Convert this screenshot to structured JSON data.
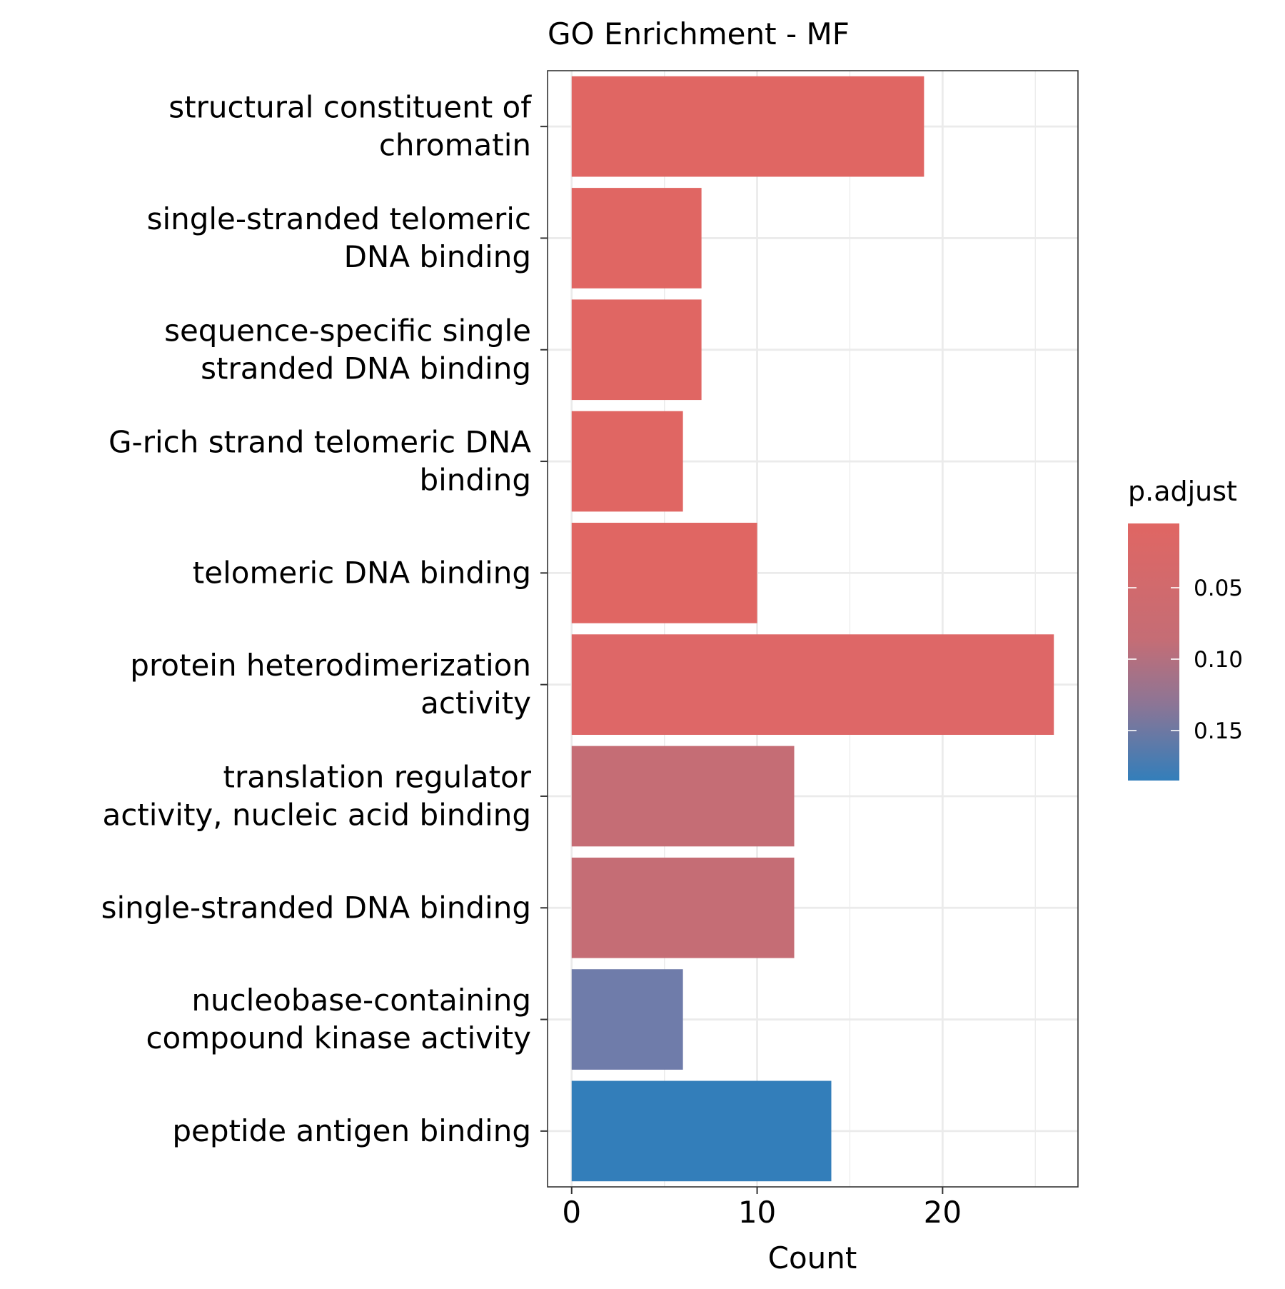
{
  "chart_data": {
    "type": "bar",
    "orientation": "horizontal",
    "title": "GO Enrichment - MF",
    "xlabel": "Count",
    "ylabel": "",
    "xlim": [
      -1.3,
      27.3
    ],
    "x_ticks": [
      0,
      10,
      20
    ],
    "x_tick_labels": [
      "0",
      "10",
      "20"
    ],
    "grid": true,
    "categories": [
      {
        "lines": [
          "structural constituent of",
          "chromatin"
        ],
        "count": 19,
        "p_adjust": 0.005,
        "color": "#E06663"
      },
      {
        "lines": [
          "single-stranded telomeric",
          "DNA binding"
        ],
        "count": 7,
        "p_adjust": 0.005,
        "color": "#E06663"
      },
      {
        "lines": [
          "sequence-specific single",
          "stranded DNA binding"
        ],
        "count": 7,
        "p_adjust": 0.005,
        "color": "#E06663"
      },
      {
        "lines": [
          "G-rich strand telomeric DNA",
          "binding"
        ],
        "count": 6,
        "p_adjust": 0.005,
        "color": "#E06663"
      },
      {
        "lines": [
          "telomeric DNA binding"
        ],
        "count": 10,
        "p_adjust": 0.006,
        "color": "#E06663"
      },
      {
        "lines": [
          "protein heterodimerization",
          "activity"
        ],
        "count": 26,
        "p_adjust": 0.008,
        "color": "#DE6767"
      },
      {
        "lines": [
          "translation regulator",
          "activity, nucleic acid binding"
        ],
        "count": 12,
        "p_adjust": 0.045,
        "color": "#C56D75"
      },
      {
        "lines": [
          "single-stranded DNA binding"
        ],
        "count": 12,
        "p_adjust": 0.045,
        "color": "#C56D75"
      },
      {
        "lines": [
          "nucleobase-containing",
          "compound kinase activity"
        ],
        "count": 6,
        "p_adjust": 0.13,
        "color": "#6F7CAA"
      },
      {
        "lines": [
          "peptide antigen binding"
        ],
        "count": 14,
        "p_adjust": 0.18,
        "color": "#337EBA"
      }
    ],
    "legend": {
      "title": "p.adjust",
      "position": "right",
      "range": [
        0.005,
        0.185
      ],
      "low_color": "#E06663",
      "high_color": "#337EBA",
      "ticks": [
        0.05,
        0.1,
        0.15
      ],
      "tick_labels": [
        "0.05",
        "0.10",
        "0.15"
      ]
    }
  }
}
